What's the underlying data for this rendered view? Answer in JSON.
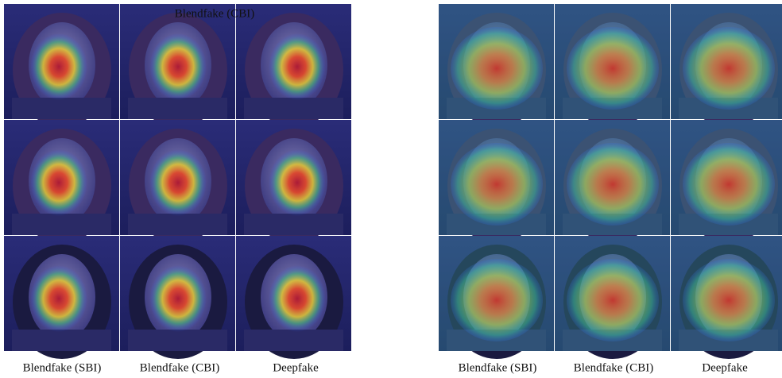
{
  "panels": [
    {
      "overlay_title": "Blendfake (CBI)",
      "captions": [
        "Blendfake (SBI)",
        "Blendfake (CBI)",
        "Deepfake"
      ]
    },
    {
      "captions": [
        "Blendfake (SBI)",
        "Blendfake (CBI)",
        "Deepfake"
      ]
    }
  ]
}
